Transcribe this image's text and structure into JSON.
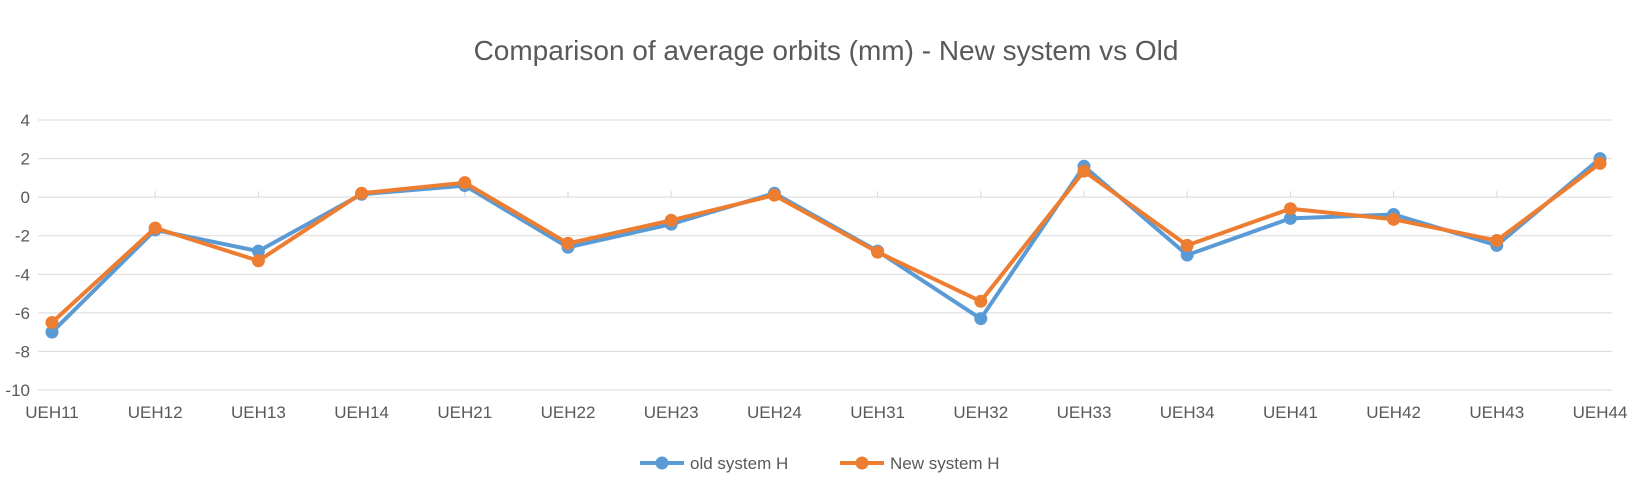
{
  "chart_data": {
    "type": "line",
    "title": "Comparison of average orbits (mm) - New system vs Old",
    "xlabel": "",
    "ylabel": "",
    "categories": [
      "UEH11",
      "UEH12",
      "UEH13",
      "UEH14",
      "UEH21",
      "UEH22",
      "UEH23",
      "UEH24",
      "UEH31",
      "UEH32",
      "UEH33",
      "UEH34",
      "UEH41",
      "UEH42",
      "UEH43",
      "UEH44"
    ],
    "ylim": [
      -10,
      4
    ],
    "yticks": [
      4,
      2,
      0,
      -2,
      -4,
      -6,
      -8,
      -10
    ],
    "grid": true,
    "legend_position": "bottom",
    "series": [
      {
        "name": "old system H",
        "color": "#5b9bd5",
        "values": [
          -7.0,
          -1.7,
          -2.8,
          0.15,
          0.6,
          -2.6,
          -1.4,
          0.2,
          -2.8,
          -6.3,
          1.6,
          -3.0,
          -1.1,
          -0.9,
          -2.5,
          2.0
        ]
      },
      {
        "name": "New system H",
        "color": "#ed7d31",
        "values": [
          -6.5,
          -1.6,
          -3.3,
          0.2,
          0.75,
          -2.4,
          -1.2,
          0.1,
          -2.85,
          -5.4,
          1.35,
          -2.5,
          -0.6,
          -1.15,
          -2.25,
          1.75
        ]
      }
    ]
  }
}
